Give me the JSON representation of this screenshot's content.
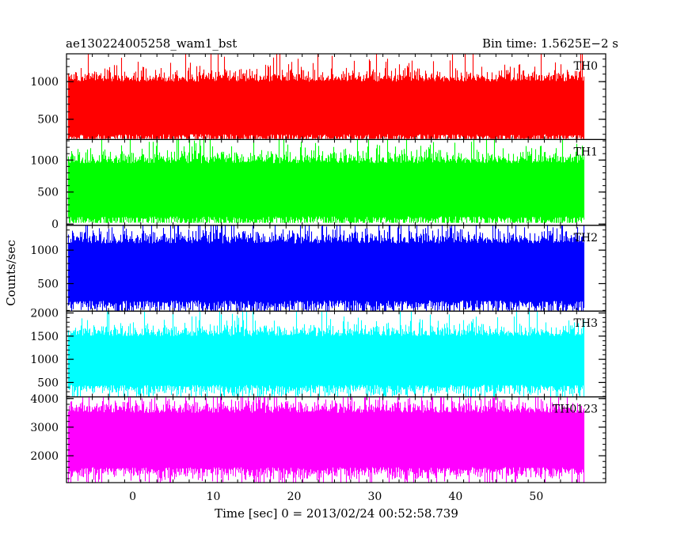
{
  "header": {
    "left_title": "ae130224005258_wam1_bst",
    "right_title": "Bin time: 1.5625E−2 s"
  },
  "chart_data": {
    "type": "line",
    "xlabel": "Time [sec] 0 = 2013/02/24 00:52:58.739",
    "ylabel": "Counts/sec",
    "xlim": [
      -8.2,
      58.6
    ],
    "data_x_range": [
      -8.0,
      56.0
    ],
    "bin_time_s": 0.015625,
    "x_ticks": [
      0,
      10,
      20,
      30,
      40,
      50
    ],
    "panels": [
      {
        "name": "TH0",
        "color": "#ff0000",
        "ylim": [
          230,
          1370
        ],
        "y_ticks": [
          500,
          1000
        ],
        "mean": 650,
        "typical_low": 300,
        "typical_high": 1000,
        "min": 240,
        "max": 1370
      },
      {
        "name": "TH1",
        "color": "#00ff00",
        "ylim": [
          -20,
          1320
        ],
        "y_ticks": [
          0,
          500,
          1000
        ],
        "mean": 550,
        "typical_low": 120,
        "typical_high": 950,
        "min": 20,
        "max": 1320
      },
      {
        "name": "TH2",
        "color": "#0000ff",
        "ylim": [
          90,
          1370
        ],
        "y_ticks": [
          500,
          1000
        ],
        "mean": 650,
        "typical_low": 250,
        "typical_high": 1100,
        "min": 95,
        "max": 1370
      },
      {
        "name": "TH3",
        "color": "#00ffff",
        "ylim": [
          190,
          2040
        ],
        "y_ticks": [
          500,
          1000,
          1500,
          2000
        ],
        "mean": 950,
        "typical_low": 450,
        "typical_high": 1500,
        "min": 200,
        "max": 2030
      },
      {
        "name": "TH0123",
        "color": "#ff00ff",
        "ylim": [
          1060,
          4060
        ],
        "y_ticks": [
          2000,
          3000,
          4000
        ],
        "mean": 2600,
        "typical_low": 1600,
        "typical_high": 3500,
        "min": 1070,
        "max": 4050
      }
    ]
  }
}
